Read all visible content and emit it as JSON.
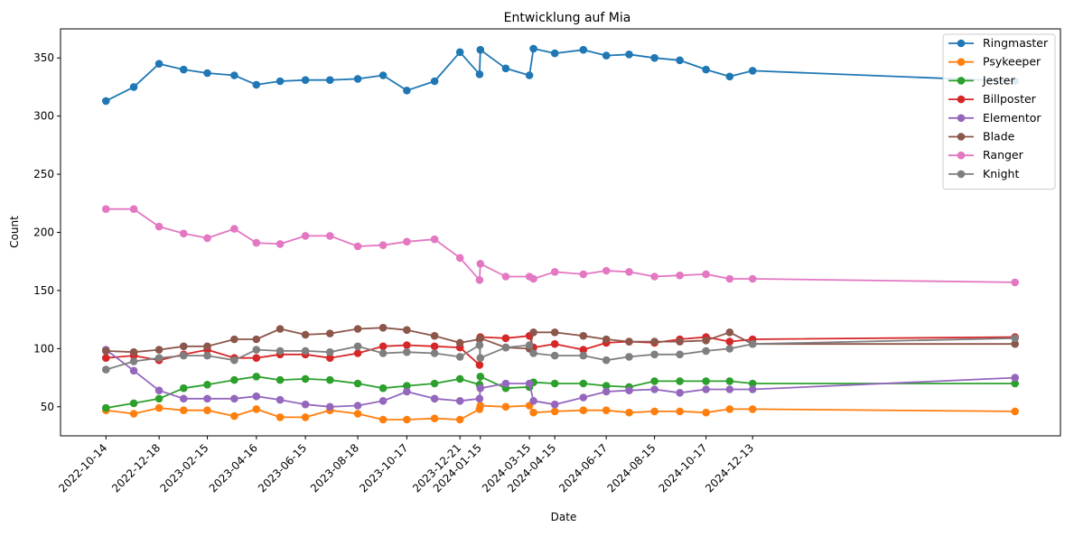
{
  "chart_data": {
    "type": "line",
    "title": "Entwicklung auf Mia",
    "xlabel": "Date",
    "ylabel": "Count",
    "ylim": [
      25,
      375
    ],
    "yticks": [
      50,
      100,
      150,
      200,
      250,
      300,
      350
    ],
    "xticks": [
      "2022-10-14",
      "2022-12-18",
      "2023-02-15",
      "2023-04-16",
      "2023-06-15",
      "2023-08-18",
      "2023-10-17",
      "2023-12-21",
      "2024-01-15",
      "2024-03-15",
      "2024-04-15",
      "2024-06-17",
      "2024-08-15",
      "2024-10-17",
      "2024-12-13"
    ],
    "x": [
      "2022-10-14",
      "2022-11-17",
      "2022-12-18",
      "2023-01-17",
      "2023-02-15",
      "2023-03-20",
      "2023-04-16",
      "2023-05-15",
      "2023-06-15",
      "2023-07-15",
      "2023-08-18",
      "2023-09-18",
      "2023-10-17",
      "2023-11-20",
      "2023-12-21",
      "2024-01-14",
      "2024-01-15",
      "2024-02-15",
      "2024-03-15",
      "2024-03-20",
      "2024-04-15",
      "2024-05-20",
      "2024-06-17",
      "2024-07-15",
      "2024-08-15",
      "2024-09-15",
      "2024-10-17",
      "2024-11-15",
      "2024-12-13",
      "2025-10-30"
    ],
    "legend_position": "top-right",
    "grid": false,
    "series": [
      {
        "name": "Ringmaster",
        "color": "#1f77b4",
        "values": [
          313,
          325,
          345,
          340,
          337,
          335,
          327,
          330,
          331,
          331,
          332,
          335,
          322,
          330,
          355,
          336,
          357,
          341,
          335,
          358,
          354,
          357,
          352,
          353,
          350,
          348,
          340,
          334,
          339,
          330
        ]
      },
      {
        "name": "Psykeeper",
        "color": "#ff7f0e",
        "values": [
          47,
          44,
          49,
          47,
          47,
          42,
          48,
          41,
          41,
          47,
          44,
          39,
          39,
          40,
          39,
          48,
          51,
          50,
          51,
          45,
          46,
          47,
          47,
          45,
          46,
          46,
          45,
          48,
          48,
          46
        ]
      },
      {
        "name": "Jester",
        "color": "#2ca02c",
        "values": [
          49,
          53,
          57,
          66,
          69,
          73,
          76,
          73,
          74,
          73,
          70,
          66,
          68,
          70,
          74,
          69,
          76,
          66,
          67,
          71,
          70,
          70,
          68,
          67,
          72,
          72,
          72,
          72,
          70,
          70
        ]
      },
      {
        "name": "Billposter",
        "color": "#d62728",
        "values": [
          92,
          94,
          90,
          95,
          99,
          92,
          92,
          95,
          95,
          92,
          96,
          102,
          103,
          102,
          101,
          86,
          110,
          109,
          111,
          101,
          104,
          99,
          105,
          106,
          105,
          108,
          110,
          106,
          108,
          110
        ]
      },
      {
        "name": "Elementor",
        "color": "#9467bd",
        "values": [
          99,
          81,
          64,
          57,
          57,
          57,
          59,
          56,
          52,
          50,
          51,
          55,
          63,
          57,
          55,
          57,
          66,
          70,
          70,
          55,
          52,
          58,
          63,
          64,
          65,
          62,
          65,
          65,
          65,
          75
        ]
      },
      {
        "name": "Blade",
        "color": "#8c564b",
        "values": [
          98,
          97,
          99,
          102,
          102,
          108,
          108,
          117,
          112,
          113,
          117,
          118,
          116,
          111,
          105,
          108,
          109,
          101,
          100,
          114,
          114,
          111,
          108,
          106,
          106,
          106,
          107,
          114,
          104,
          104
        ]
      },
      {
        "name": "Ranger",
        "color": "#e377c2",
        "values": [
          220,
          220,
          205,
          199,
          195,
          203,
          191,
          190,
          197,
          197,
          188,
          189,
          192,
          194,
          178,
          159,
          173,
          162,
          162,
          160,
          166,
          164,
          167,
          166,
          162,
          163,
          164,
          160,
          160,
          157
        ]
      },
      {
        "name": "Knight",
        "color": "#7f7f7f",
        "values": [
          82,
          89,
          92,
          94,
          94,
          90,
          99,
          98,
          98,
          97,
          102,
          96,
          97,
          96,
          93,
          103,
          92,
          101,
          103,
          96,
          94,
          94,
          90,
          93,
          95,
          95,
          98,
          100,
          104,
          109
        ]
      }
    ]
  }
}
